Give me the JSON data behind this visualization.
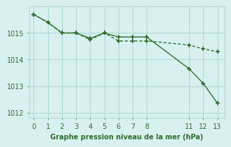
{
  "line1_x": [
    0,
    1,
    2,
    3,
    4,
    5,
    6,
    7,
    8,
    11,
    12,
    13
  ],
  "line1_y": [
    1015.7,
    1015.4,
    1015.0,
    1015.0,
    1014.8,
    1015.0,
    1014.85,
    1014.85,
    1014.85,
    1013.65,
    1013.1,
    1012.35
  ],
  "line2_x": [
    0,
    1,
    2,
    3,
    4,
    5,
    6,
    7,
    8,
    11,
    12,
    13
  ],
  "line2_y": [
    1015.7,
    1015.4,
    1015.0,
    1015.0,
    1014.75,
    1015.0,
    1014.7,
    1014.7,
    1014.7,
    1014.55,
    1014.4,
    1014.3
  ],
  "line_color": "#2d6e2d",
  "bg_color": "#d9f0f0",
  "grid_color": "#b0d8d8",
  "xlabel": "Graphe pression niveau de la mer (hPa)",
  "xticks": [
    0,
    1,
    2,
    3,
    4,
    5,
    6,
    7,
    8,
    11,
    12,
    13
  ],
  "yticks": [
    1012,
    1013,
    1014,
    1015
  ],
  "ylim": [
    1011.8,
    1016.0
  ],
  "xlim": [
    -0.3,
    13.5
  ]
}
